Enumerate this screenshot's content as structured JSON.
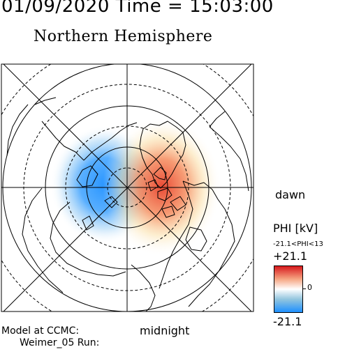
{
  "header": {
    "time_title": "01/09/2020 Time = 15:03:00",
    "hemisphere_title": "Northern Hemisphere"
  },
  "map": {
    "projection": "north polar stereographic",
    "grid_style": "solid and dashed latitude circles with meridian lines",
    "coastline_color": "#000000",
    "field": [
      {
        "name": "negative potential cell",
        "side": "dusk",
        "color": "#1e90ff"
      },
      {
        "name": "positive potential cell",
        "side": "dawn",
        "color": "#d7191c"
      }
    ]
  },
  "labels": {
    "dawn": "dawn",
    "midnight": "midnight"
  },
  "colorbar": {
    "title": "PHI [kV]",
    "range_text": "-21.1<PHI<13",
    "max_label": "+21.1",
    "zero_label": "0",
    "min_label": "-21.1",
    "max_value": 21.1,
    "min_value": -21.1,
    "colors": [
      "#d7191c",
      "#f6a582",
      "#ffffff",
      "#92c5de",
      "#1e90ff"
    ]
  },
  "footer": {
    "model_line": "Model at CCMC:",
    "run_line": "Weimer_05 Run:"
  }
}
